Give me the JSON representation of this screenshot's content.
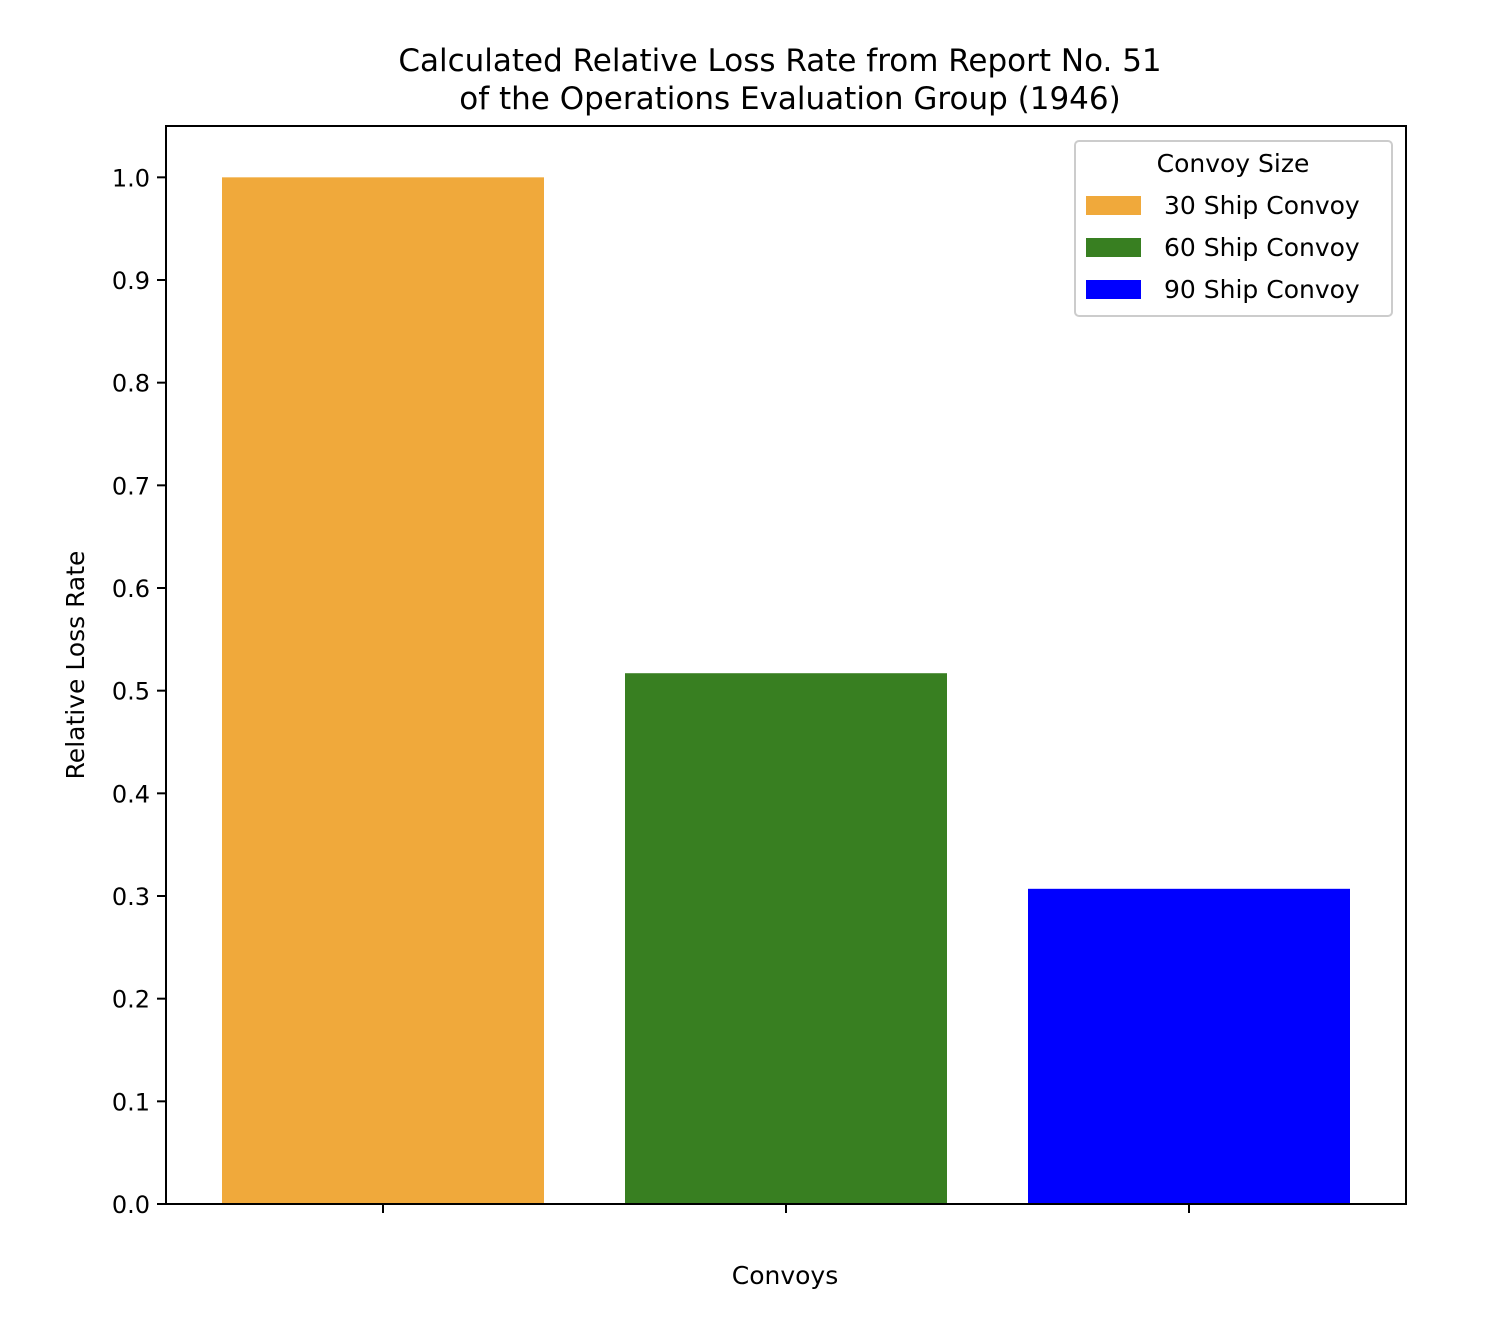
{
  "chart_data": {
    "type": "bar",
    "title_lines": [
      "Calculated Relative Loss Rate from Report No. 51",
      "of the Operations Evaluation Group (1946)"
    ],
    "xlabel": "Convoys",
    "ylabel": "Relative Loss Rate",
    "categories": [
      "30 Ship Convoy",
      "60 Ship Convoy",
      "90 Ship Convoy"
    ],
    "values": [
      1.0,
      0.517,
      0.307
    ],
    "colors": [
      "#f0a93b",
      "#387f21",
      "#0000ff"
    ],
    "ylim": [
      0,
      1.05
    ],
    "yticks": [
      "0.0",
      "0.1",
      "0.2",
      "0.3",
      "0.4",
      "0.5",
      "0.6",
      "0.7",
      "0.8",
      "0.9",
      "1.0"
    ],
    "xtick_labels_shown": false,
    "grid": false,
    "legend": {
      "title": "Convoy Size",
      "placement": "top-right",
      "entries": [
        "30 Ship Convoy",
        "60 Ship Convoy",
        "90 Ship Convoy"
      ]
    }
  }
}
